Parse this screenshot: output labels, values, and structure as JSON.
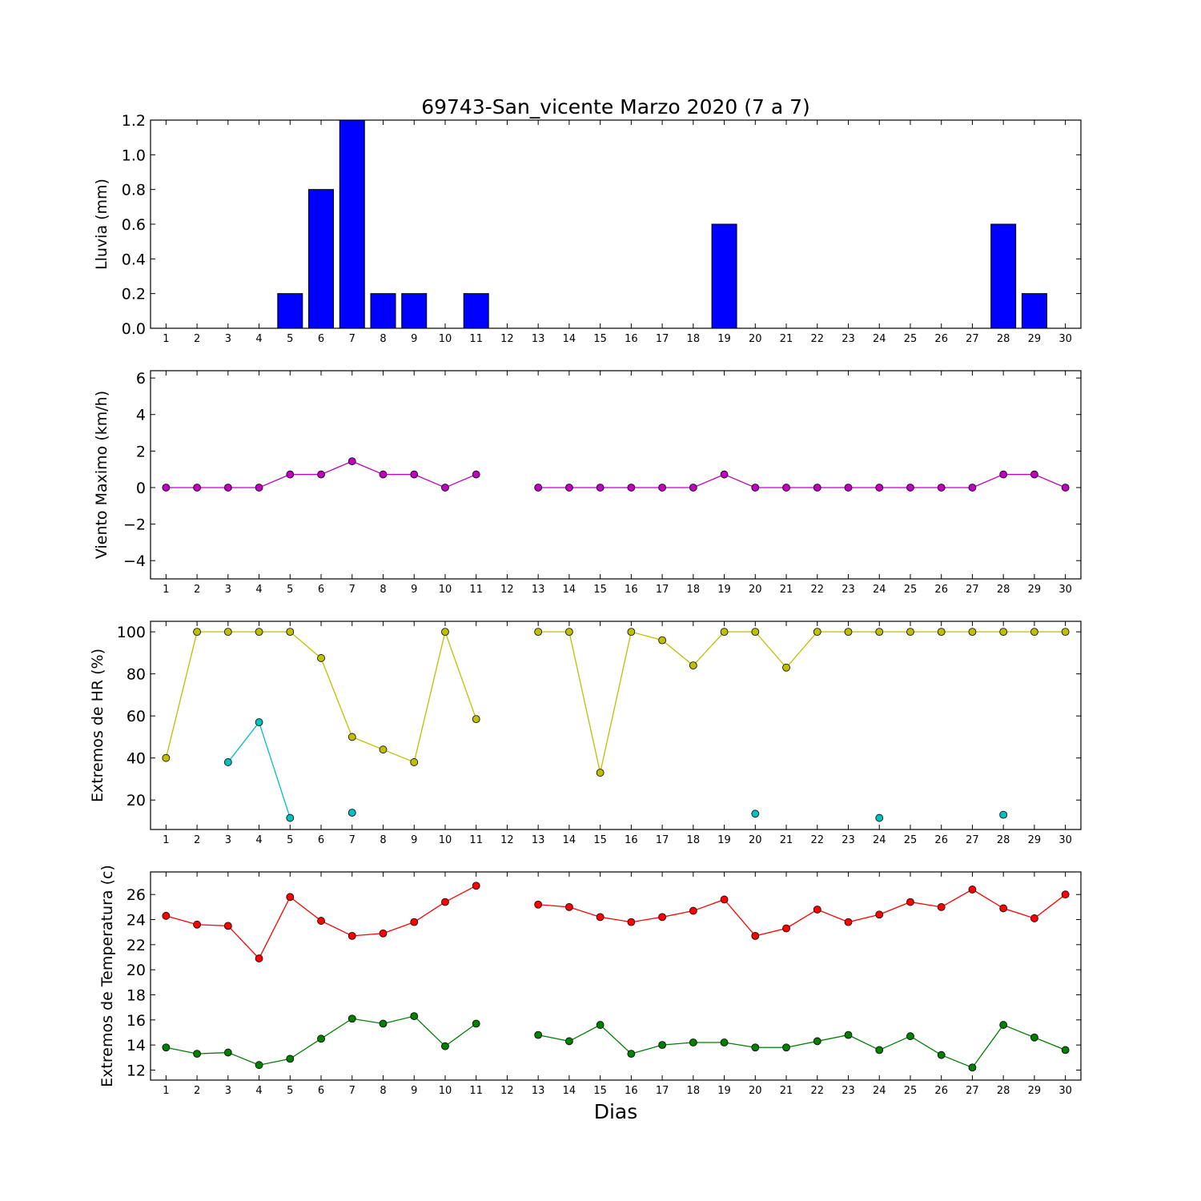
{
  "chart_data": [
    {
      "type": "bar",
      "title": "69743-San_vicente Marzo 2020  (7 a 7)",
      "ylabel": "Lluvia (mm)",
      "xlabel": "",
      "x": [
        1,
        2,
        3,
        4,
        5,
        6,
        7,
        8,
        9,
        10,
        11,
        12,
        13,
        14,
        15,
        16,
        17,
        18,
        19,
        20,
        21,
        22,
        23,
        24,
        25,
        26,
        27,
        28,
        29,
        30
      ],
      "series": [
        {
          "color": "#0000ff",
          "values": [
            0,
            0,
            0,
            0,
            0.2,
            0.8,
            1.2,
            0.2,
            0.2,
            0,
            0.2,
            null,
            0,
            0,
            0,
            0,
            0,
            0,
            0.6,
            0,
            0,
            0,
            0,
            0,
            0,
            0,
            0,
            0.6,
            0.2,
            0
          ]
        }
      ],
      "xlim": [
        0.5,
        30.5
      ],
      "ylim": [
        0,
        1.2
      ],
      "yticks": [
        0.0,
        0.2,
        0.4,
        0.6,
        0.8,
        1.0,
        1.2
      ],
      "ytick_labels": [
        "0.0",
        "0.2",
        "0.4",
        "0.6",
        "0.8",
        "1.0",
        "1.2"
      ],
      "grid": false
    },
    {
      "type": "line",
      "ylabel": "Viento Maximo (km/h)",
      "xlabel": "",
      "x": [
        1,
        2,
        3,
        4,
        5,
        6,
        7,
        8,
        9,
        10,
        11,
        12,
        13,
        14,
        15,
        16,
        17,
        18,
        19,
        20,
        21,
        22,
        23,
        24,
        25,
        26,
        27,
        28,
        29,
        30
      ],
      "series": [
        {
          "color": "#bf00bf",
          "values": [
            0,
            0,
            0,
            0,
            0.72,
            0.72,
            1.44,
            0.72,
            0.72,
            0,
            0.72,
            null,
            0,
            0,
            0,
            0,
            0,
            0,
            0.72,
            0,
            0,
            0,
            0,
            0,
            0,
            0,
            0,
            0.72,
            0.72,
            0
          ]
        }
      ],
      "xlim": [
        0.5,
        30.5
      ],
      "ylim": [
        -5,
        6.4
      ],
      "yticks": [
        -4,
        -2,
        0,
        2,
        4,
        6
      ],
      "ytick_labels": [
        "−4",
        "−2",
        "0",
        "2",
        "4",
        "6"
      ],
      "grid": false
    },
    {
      "type": "line",
      "ylabel": "Extremos de HR (%)",
      "xlabel": "",
      "x": [
        1,
        2,
        3,
        4,
        5,
        6,
        7,
        8,
        9,
        10,
        11,
        12,
        13,
        14,
        15,
        16,
        17,
        18,
        19,
        20,
        21,
        22,
        23,
        24,
        25,
        26,
        27,
        28,
        29,
        30
      ],
      "series": [
        {
          "color": "#bfbf00",
          "values": [
            40,
            100,
            100,
            100,
            100,
            87.5,
            50,
            44,
            38,
            100,
            58.5,
            null,
            100,
            100,
            33,
            100,
            96,
            84,
            100,
            100,
            83,
            100,
            100,
            100,
            100,
            100,
            100,
            100,
            100,
            100
          ]
        },
        {
          "color": "#00bfbf",
          "values": [
            null,
            null,
            38,
            57,
            11.5,
            null,
            14,
            null,
            null,
            null,
            null,
            null,
            null,
            null,
            null,
            null,
            null,
            null,
            null,
            13.5,
            null,
            null,
            null,
            11.5,
            null,
            null,
            null,
            13,
            null,
            null
          ]
        }
      ],
      "xlim": [
        0.5,
        30.5
      ],
      "ylim": [
        6,
        105
      ],
      "yticks": [
        20,
        40,
        60,
        80,
        100
      ],
      "ytick_labels": [
        "20",
        "40",
        "60",
        "80",
        "100"
      ],
      "grid": false
    },
    {
      "type": "line",
      "ylabel": "Extremos de Temperatura (c)",
      "xlabel": "Dias",
      "x": [
        1,
        2,
        3,
        4,
        5,
        6,
        7,
        8,
        9,
        10,
        11,
        12,
        13,
        14,
        15,
        16,
        17,
        18,
        19,
        20,
        21,
        22,
        23,
        24,
        25,
        26,
        27,
        28,
        29,
        30
      ],
      "series": [
        {
          "color": "#ff0000",
          "values": [
            24.3,
            23.6,
            23.5,
            20.9,
            25.8,
            23.9,
            22.7,
            22.9,
            23.8,
            25.4,
            26.7,
            null,
            25.2,
            25.0,
            24.2,
            23.8,
            24.2,
            24.7,
            25.6,
            22.7,
            23.3,
            24.8,
            23.8,
            24.4,
            25.4,
            25.0,
            26.4,
            24.9,
            24.1,
            26.0
          ]
        },
        {
          "color": "#007f00",
          "values": [
            13.8,
            13.3,
            13.4,
            12.4,
            12.9,
            14.5,
            16.1,
            15.7,
            16.3,
            13.9,
            15.7,
            null,
            14.8,
            14.3,
            15.6,
            13.3,
            14.0,
            14.2,
            14.2,
            13.8,
            13.8,
            14.3,
            14.8,
            13.6,
            14.7,
            13.2,
            12.2,
            15.6,
            14.6,
            13.6
          ]
        }
      ],
      "xlim": [
        0.5,
        30.5
      ],
      "ylim": [
        11.2,
        27.8
      ],
      "yticks": [
        12,
        14,
        16,
        18,
        20,
        22,
        24,
        26
      ],
      "ytick_labels": [
        "12",
        "14",
        "16",
        "18",
        "20",
        "22",
        "24",
        "26"
      ],
      "grid": false
    }
  ]
}
